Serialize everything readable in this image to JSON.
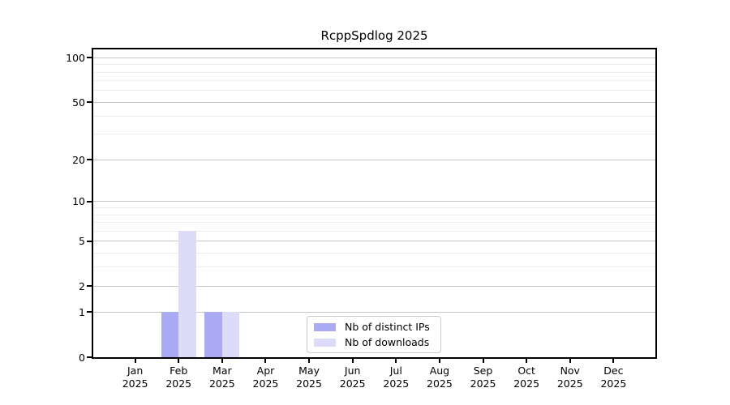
{
  "chart_data": {
    "type": "bar",
    "title": "RcppSpdlog 2025",
    "categories": [
      {
        "month": "Jan",
        "year": "2025"
      },
      {
        "month": "Feb",
        "year": "2025"
      },
      {
        "month": "Mar",
        "year": "2025"
      },
      {
        "month": "Apr",
        "year": "2025"
      },
      {
        "month": "May",
        "year": "2025"
      },
      {
        "month": "Jun",
        "year": "2025"
      },
      {
        "month": "Jul",
        "year": "2025"
      },
      {
        "month": "Aug",
        "year": "2025"
      },
      {
        "month": "Sep",
        "year": "2025"
      },
      {
        "month": "Oct",
        "year": "2025"
      },
      {
        "month": "Nov",
        "year": "2025"
      },
      {
        "month": "Dec",
        "year": "2025"
      }
    ],
    "series": [
      {
        "name": "Nb of distinct IPs",
        "color": "#aaaaf5",
        "values": [
          0,
          1,
          1,
          0,
          0,
          0,
          0,
          0,
          0,
          0,
          0,
          0
        ]
      },
      {
        "name": "Nb of downloads",
        "color": "#dcdcf8",
        "values": [
          0,
          6,
          1,
          0,
          0,
          0,
          0,
          0,
          0,
          0,
          0,
          0
        ]
      }
    ],
    "y_scale": "log1p",
    "y_ticks": [
      0,
      1,
      2,
      5,
      10,
      20,
      50,
      100
    ],
    "y_minor_gridlines": [
      3,
      4,
      6,
      7,
      8,
      9,
      30,
      40,
      60,
      70,
      80,
      90
    ],
    "ylim": [
      0,
      114
    ],
    "xlabel": "",
    "ylabel": "",
    "grid": true,
    "legend_position": "lower-center"
  },
  "colors": {
    "major_grid": "#c6c6c6",
    "minor_grid": "#ededed",
    "frame": "#000000",
    "text": "#000000",
    "background": "#ffffff"
  }
}
